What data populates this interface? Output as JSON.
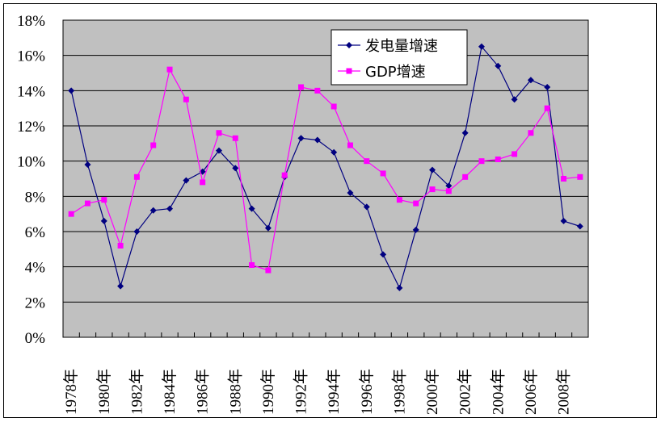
{
  "chart_data": {
    "type": "line",
    "title": "",
    "xlabel": "",
    "ylabel": "",
    "ylim": [
      0,
      18
    ],
    "y_ticks": [
      "0%",
      "2%",
      "4%",
      "6%",
      "8%",
      "10%",
      "12%",
      "14%",
      "16%",
      "18%"
    ],
    "grid": true,
    "legend_position": "top-center-right",
    "x": [
      "1978年",
      "1979年",
      "1980年",
      "1981年",
      "1982年",
      "1983年",
      "1984年",
      "1985年",
      "1986年",
      "1987年",
      "1988年",
      "1989年",
      "1990年",
      "1991年",
      "1992年",
      "1993年",
      "1994年",
      "1995年",
      "1996年",
      "1997年",
      "1998年",
      "1999年",
      "2000年",
      "2001年",
      "2002年",
      "2003年",
      "2004年",
      "2005年",
      "2006年",
      "2007年",
      "2008年",
      "2009年"
    ],
    "x_tick_labels": [
      "1978年",
      "1980年",
      "1982年",
      "1984年",
      "1986年",
      "1988年",
      "1990年",
      "1992年",
      "1994年",
      "1996年",
      "1998年",
      "2000年",
      "2002年",
      "2004年",
      "2006年",
      "2008年"
    ],
    "series": [
      {
        "name": "发电量增速",
        "color": "#000080",
        "marker": "diamond",
        "values": [
          14.0,
          9.8,
          6.6,
          2.9,
          6.0,
          7.2,
          7.3,
          8.9,
          9.4,
          10.6,
          9.6,
          7.3,
          6.2,
          9.1,
          11.3,
          11.2,
          10.5,
          8.2,
          7.4,
          4.7,
          2.8,
          6.1,
          9.5,
          8.6,
          11.6,
          16.5,
          15.4,
          13.5,
          14.6,
          14.2,
          6.6,
          6.3
        ]
      },
      {
        "name": "GDP增速",
        "color": "#FF00FF",
        "marker": "square",
        "values": [
          7.0,
          7.6,
          7.8,
          5.2,
          9.1,
          10.9,
          15.2,
          13.5,
          8.8,
          11.6,
          11.3,
          4.1,
          3.8,
          9.2,
          14.2,
          14.0,
          13.1,
          10.9,
          10.0,
          9.3,
          7.8,
          7.6,
          8.4,
          8.3,
          9.1,
          10.0,
          10.1,
          10.4,
          11.6,
          13.0,
          9.0,
          9.1
        ]
      }
    ]
  },
  "legend": {
    "items": [
      {
        "label": "发电量增速"
      },
      {
        "label": "GDP增速"
      }
    ]
  },
  "style": {
    "plot_background": "#C0C0C0",
    "gridline_color": "#000000"
  }
}
